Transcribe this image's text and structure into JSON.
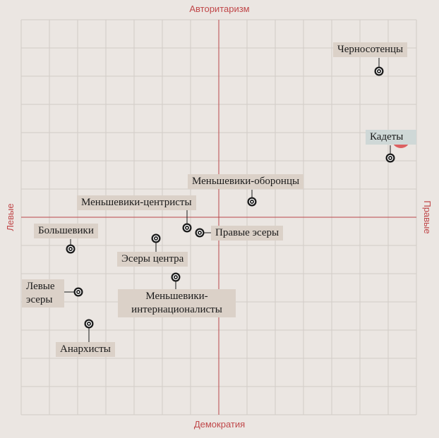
{
  "axes": {
    "top": "Авторитаризм",
    "bottom": "Демократия",
    "left": "Левые",
    "right": "Правые"
  },
  "colors": {
    "background": "#ebe6e2",
    "grid": "#d2ccc7",
    "axis": "#b8474a",
    "label_bg": "#dbd1c8",
    "highlight_bg": "#cfd8d7",
    "highlight_dot": "#d9484a",
    "dot": "#1a1a1a"
  },
  "grid": {
    "columns": 14,
    "rows": 14
  },
  "parties": [
    {
      "key": "chernosotentsy",
      "label": "Черносотенцы"
    },
    {
      "key": "kadety",
      "label": "Кадеты",
      "highlight": true
    },
    {
      "key": "menshevik-oborontsy",
      "label": "Меньшевики-оборонцы"
    },
    {
      "key": "menshevik-tsentristy",
      "label": "Меньшевики-центристы"
    },
    {
      "key": "bolsheviki",
      "label": "Большевики"
    },
    {
      "key": "pravye-esery",
      "label": "Правые эсеры"
    },
    {
      "key": "esery-tsentra",
      "label": "Эсеры центра"
    },
    {
      "key": "levye-esery",
      "label": "Левые эсеры"
    },
    {
      "key": "menshevik-internatsionalisty",
      "label": "Меньшевики-интернационалисты"
    },
    {
      "key": "anarkhisty",
      "label": "Анархисты"
    }
  ]
}
